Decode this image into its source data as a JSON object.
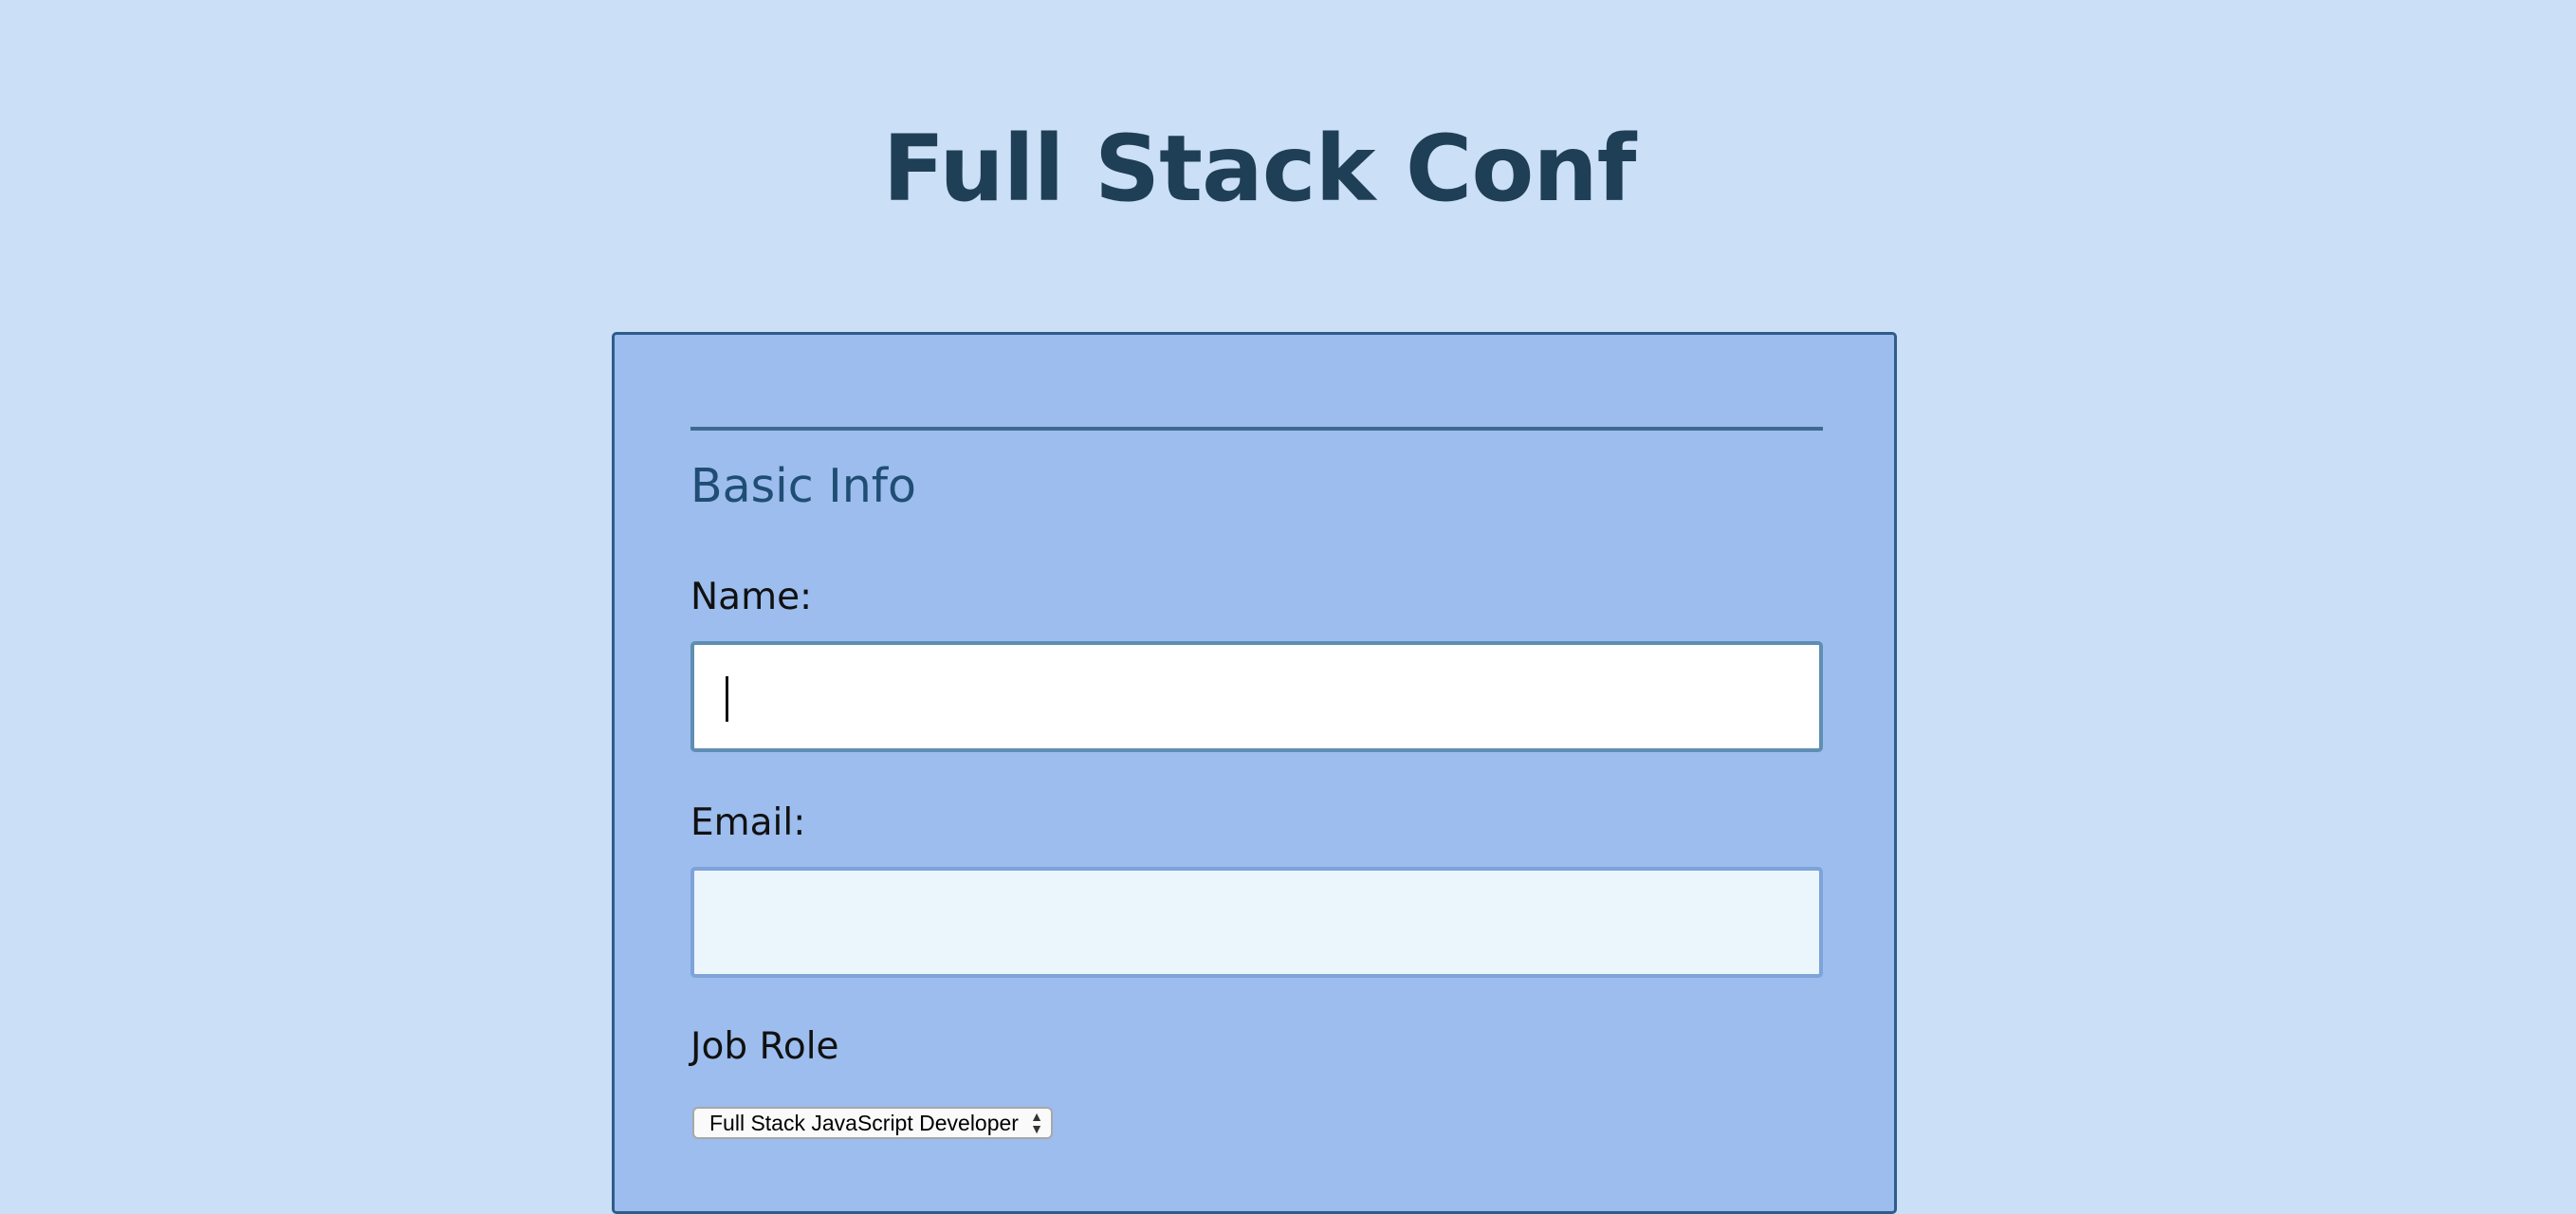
{
  "header": {
    "title": "Full Stack Conf"
  },
  "form": {
    "section_title": "Basic Info",
    "name": {
      "label": "Name:",
      "value": ""
    },
    "email": {
      "label": "Email:",
      "value": ""
    },
    "job_role": {
      "label": "Job Role",
      "selected": "Full Stack JavaScript Developer"
    }
  },
  "icons": {
    "select_arrows": "up-down-caret-icon"
  },
  "colors": {
    "page_background": "#cbdff7",
    "card_background": "#9cbdee",
    "title": "#1f3f56",
    "section_title": "#1f4d73",
    "card_border": "#2f5c8a"
  }
}
